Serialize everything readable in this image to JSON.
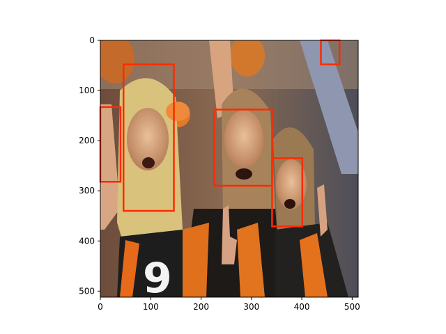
{
  "figure": {
    "image_extent": {
      "x": [
        0,
        512
      ],
      "y": [
        512,
        0
      ]
    },
    "x_ticks": [
      {
        "value": 0,
        "label": "0"
      },
      {
        "value": 100,
        "label": "100"
      },
      {
        "value": 200,
        "label": "200"
      },
      {
        "value": 300,
        "label": "300"
      },
      {
        "value": 400,
        "label": "400"
      },
      {
        "value": 500,
        "label": "500"
      }
    ],
    "y_ticks": [
      {
        "value": 0,
        "label": "0"
      },
      {
        "value": 100,
        "label": "100"
      },
      {
        "value": 200,
        "label": "200"
      },
      {
        "value": 300,
        "label": "300"
      },
      {
        "value": 400,
        "label": "400"
      },
      {
        "value": 500,
        "label": "500"
      }
    ],
    "box_color": "#ff2a00",
    "boxes": [
      {
        "name": "face-box-1",
        "x0": 46,
        "y0": 48,
        "x1": 146,
        "y1": 340
      },
      {
        "name": "face-box-2",
        "x0": 0,
        "y0": 133,
        "x1": 40,
        "y1": 282
      },
      {
        "name": "face-box-3",
        "x0": 226,
        "y0": 138,
        "x1": 341,
        "y1": 290
      },
      {
        "name": "face-box-4",
        "x0": 341,
        "y0": 235,
        "x1": 401,
        "y1": 371
      },
      {
        "name": "face-box-5",
        "x0": 438,
        "y0": 0,
        "x1": 475,
        "y1": 48
      }
    ]
  }
}
